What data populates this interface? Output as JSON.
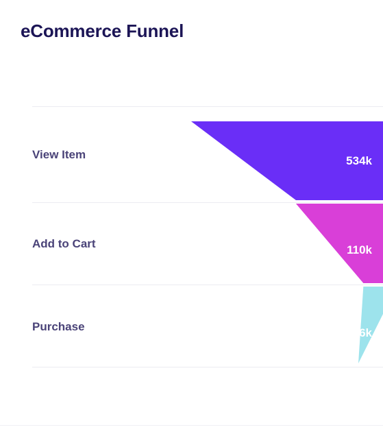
{
  "chart_data": {
    "type": "funnel",
    "title": "eCommerce Funnel",
    "stages": [
      {
        "label": "View Item",
        "value": 534000,
        "value_label": "534k",
        "color": "#6a2ef7",
        "text_color": "#ffffff"
      },
      {
        "label": "Add to Cart",
        "value": 110000,
        "value_label": "110k",
        "color": "#d93fd8",
        "text_color": "#ffffff"
      },
      {
        "label": "Purchase",
        "value": 5600,
        "value_label": "5.6k",
        "color": "#9de3ec",
        "text_color": "#ffffff"
      }
    ]
  }
}
